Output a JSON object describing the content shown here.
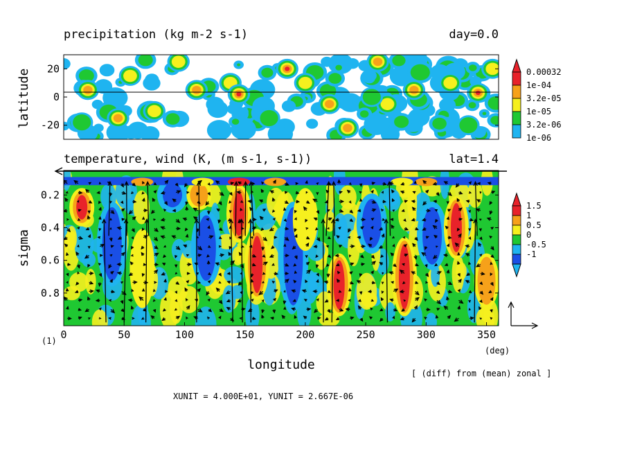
{
  "colors": {
    "red": "#e8222a",
    "orange": "#f6a11a",
    "yellow": "#f6f01e",
    "green": "#1fc832",
    "cyan": "#1fb4f0",
    "blue": "#1a4fe6",
    "white": "#ffffff",
    "black": "#000000"
  },
  "frame_label": "(1)",
  "footnote": "[ (diff) from (mean) zonal ]",
  "units_note": "XUNIT = 4.000E+01, YUNIT = 2.667E-06",
  "chart_data": [
    {
      "id": "precip",
      "type": "heatmap",
      "title": "precipitation (kg m-2 s-1)",
      "title_right": "day=0.0",
      "xlabel": "",
      "ylabel": "latitude",
      "xlim": [
        0,
        360
      ],
      "ylim": [
        -30,
        30
      ],
      "yticks": [
        20,
        0,
        -20
      ],
      "ytick_labels": [
        "20",
        "0",
        "-20"
      ],
      "zero_line": 0,
      "legend": {
        "labels": [
          "0.00032",
          "1e-04",
          "3.2e-05",
          "1e-05",
          "3.2e-06",
          "1e-06"
        ],
        "colors": [
          "#e8222a",
          "#f6a11a",
          "#f6f01e",
          "#1fc832",
          "#1fb4f0"
        ],
        "triangle_top": "#e8222a",
        "triangle_bottom": null
      },
      "blobs": [
        {
          "lon": 20,
          "lat": 5,
          "level": 3
        },
        {
          "lon": 45,
          "lat": -15,
          "level": 3
        },
        {
          "lon": 55,
          "lat": 15,
          "level": 2
        },
        {
          "lon": 95,
          "lat": 25,
          "level": 2
        },
        {
          "lon": 110,
          "lat": 5,
          "level": 3
        },
        {
          "lon": 138,
          "lat": 10,
          "level": 2
        },
        {
          "lon": 145,
          "lat": 2,
          "level": 4
        },
        {
          "lon": 185,
          "lat": 20,
          "level": 4
        },
        {
          "lon": 200,
          "lat": 10,
          "level": 2
        },
        {
          "lon": 220,
          "lat": -5,
          "level": 3
        },
        {
          "lon": 235,
          "lat": -22,
          "level": 3
        },
        {
          "lon": 260,
          "lat": 25,
          "level": 3
        },
        {
          "lon": 268,
          "lat": -5,
          "level": 2
        },
        {
          "lon": 290,
          "lat": 5,
          "level": 3
        },
        {
          "lon": 320,
          "lat": 10,
          "level": 2
        },
        {
          "lon": 343,
          "lat": 3,
          "level": 4
        },
        {
          "lon": 15,
          "lat": -18,
          "level": 1
        },
        {
          "lon": 75,
          "lat": -10,
          "level": 2
        },
        {
          "lon": 170,
          "lat": -15,
          "level": 1
        },
        {
          "lon": 255,
          "lat": 0,
          "level": 1
        },
        {
          "lon": 335,
          "lat": -20,
          "level": 1
        },
        {
          "lon": 355,
          "lat": 20,
          "level": 2
        }
      ]
    },
    {
      "id": "temp",
      "type": "heatmap",
      "title": "temperature, wind (K, (m s-1, s-1))",
      "title_right": "lat=1.4",
      "xlabel": "longitude",
      "x_unit": "(deg)",
      "ylabel": "sigma",
      "xlim": [
        0,
        360
      ],
      "ylim": [
        1.0,
        0.05
      ],
      "xticks": [
        0,
        50,
        100,
        150,
        200,
        250,
        300,
        350
      ],
      "xtick_labels": [
        "0",
        "50",
        "100",
        "150",
        "200",
        "250",
        "300",
        "350"
      ],
      "yticks": [
        0.2,
        0.4,
        0.6,
        0.8
      ],
      "ytick_labels": [
        "0.2",
        "0.4",
        "0.6",
        "0.8"
      ],
      "legend": {
        "labels": [
          "1.5",
          "1",
          "0.5",
          "0",
          "-0.5",
          "-1"
        ],
        "colors": [
          "#e8222a",
          "#f6a11a",
          "#f6f01e",
          "#1fc832",
          "#1fb4f0",
          "#1a4fe6"
        ],
        "triangle_top": "#e8222a",
        "triangle_bottom": "#1fb4f0"
      },
      "warm_columns": [
        {
          "lon": 15,
          "s0": 0.2,
          "s1": 0.35,
          "level": 4
        },
        {
          "lon": 65,
          "s0": 0.45,
          "s1": 0.85,
          "level": 2
        },
        {
          "lon": 145,
          "s0": 0.18,
          "s1": 0.45,
          "level": 4
        },
        {
          "lon": 160,
          "s0": 0.45,
          "s1": 0.8,
          "level": 4
        },
        {
          "lon": 228,
          "s0": 0.6,
          "s1": 0.9,
          "level": 4
        },
        {
          "lon": 282,
          "s0": 0.5,
          "s1": 0.9,
          "level": 4
        },
        {
          "lon": 325,
          "s0": 0.25,
          "s1": 0.55,
          "level": 4
        },
        {
          "lon": 350,
          "s0": 0.6,
          "s1": 0.85,
          "level": 3
        },
        {
          "lon": 112,
          "s0": 0.15,
          "s1": 0.25,
          "level": 3
        },
        {
          "lon": 200,
          "s0": 0.2,
          "s1": 0.5,
          "level": 2
        }
      ],
      "cold_columns": [
        {
          "lon": 40,
          "s0": 0.3,
          "s1": 0.7,
          "level": 0
        },
        {
          "lon": 118,
          "s0": 0.35,
          "s1": 0.7,
          "level": 0
        },
        {
          "lon": 190,
          "s0": 0.3,
          "s1": 0.85,
          "level": 0
        },
        {
          "lon": 255,
          "s0": 0.25,
          "s1": 0.5,
          "level": 0
        },
        {
          "lon": 305,
          "s0": 0.3,
          "s1": 0.6,
          "level": 0
        },
        {
          "lon": 90,
          "s0": 0.15,
          "s1": 0.25,
          "level": 0
        }
      ],
      "updrafts": [
        35,
        50,
        68,
        110,
        140,
        148,
        155,
        215,
        222,
        268,
        340
      ],
      "reference_vector": {
        "u_label": "XUNIT",
        "v_label": "YUNIT"
      }
    }
  ]
}
